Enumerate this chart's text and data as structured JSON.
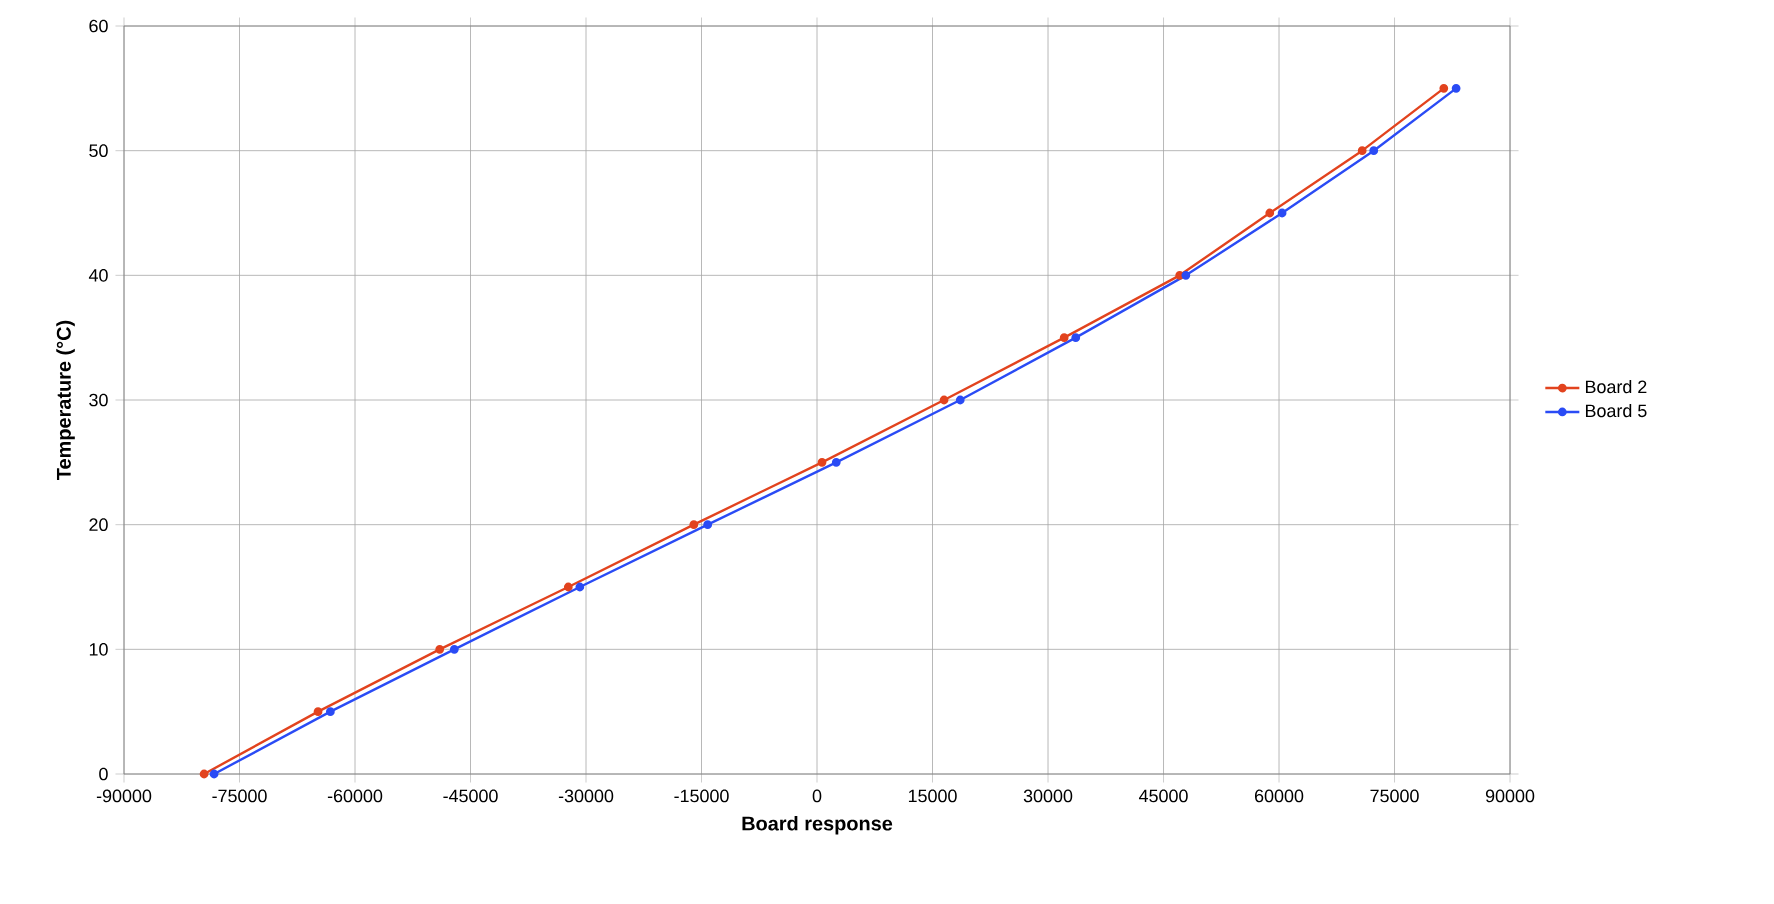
{
  "chart_data": {
    "type": "line",
    "xlabel": "Board response",
    "ylabel": "Temperature (°C)",
    "xlim": [
      -90000,
      90000
    ],
    "ylim": [
      0,
      60
    ],
    "xticks": [
      -90000,
      -75000,
      -60000,
      -45000,
      -30000,
      -15000,
      0,
      15000,
      30000,
      45000,
      60000,
      75000,
      90000
    ],
    "yticks": [
      0,
      10,
      20,
      30,
      40,
      50,
      60
    ],
    "grid": true,
    "legend": "right",
    "marker": "circle",
    "line_style": "solid",
    "series": [
      {
        "name": "Board 2",
        "color": "#e2431e",
        "x": [
          -79600,
          -64800,
          -49000,
          -32300,
          -16000,
          650,
          16500,
          32100,
          47100,
          58800,
          70800,
          81400
        ],
        "values": [
          0,
          5,
          10,
          15,
          20,
          25,
          30,
          35,
          40,
          45,
          50,
          55
        ]
      },
      {
        "name": "Board 5",
        "color": "#2a4bf5",
        "x": [
          -78300,
          -63200,
          -47100,
          -30800,
          -14200,
          2500,
          18600,
          33600,
          47900,
          60400,
          72300,
          83000
        ],
        "values": [
          0,
          5,
          10,
          15,
          20,
          25,
          30,
          35,
          40,
          45,
          50,
          55
        ]
      }
    ]
  }
}
